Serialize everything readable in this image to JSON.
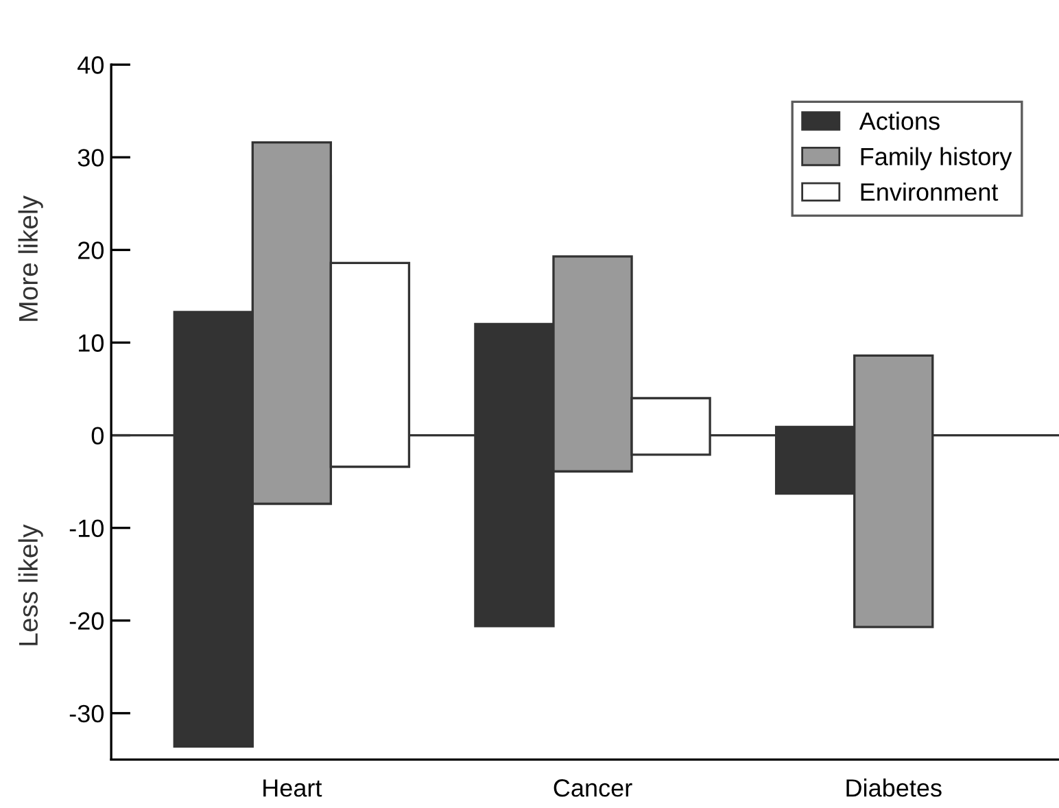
{
  "chart_data": {
    "type": "bar",
    "categories": [
      "Heart",
      "Cancer",
      "Diabetes"
    ],
    "series": [
      {
        "name": "Actions",
        "color": "#333333",
        "values": [
          46.9,
          32.6,
          7.2
        ],
        "base": [
          -33.6,
          -20.6,
          -6.3
        ]
      },
      {
        "name": "Family history",
        "color": "#9a9a9a",
        "values": [
          39.0,
          23.2,
          29.3
        ],
        "base": [
          -7.4,
          -3.9,
          -20.7
        ]
      },
      {
        "name": "Environment",
        "color": "#ffffff",
        "values": [
          22.0,
          6.1,
          null
        ],
        "base": [
          -3.4,
          -2.1,
          null
        ]
      }
    ],
    "ylim": [
      -35,
      40
    ],
    "yticks": [
      -30,
      -20,
      -10,
      0,
      10,
      20,
      30,
      40
    ],
    "ref_lines": [
      {
        "axis": "y",
        "value": 0,
        "color": "#333333"
      }
    ],
    "annotations": [
      "More likely",
      "Less likely"
    ],
    "legend": "top right",
    "grid": false
  }
}
